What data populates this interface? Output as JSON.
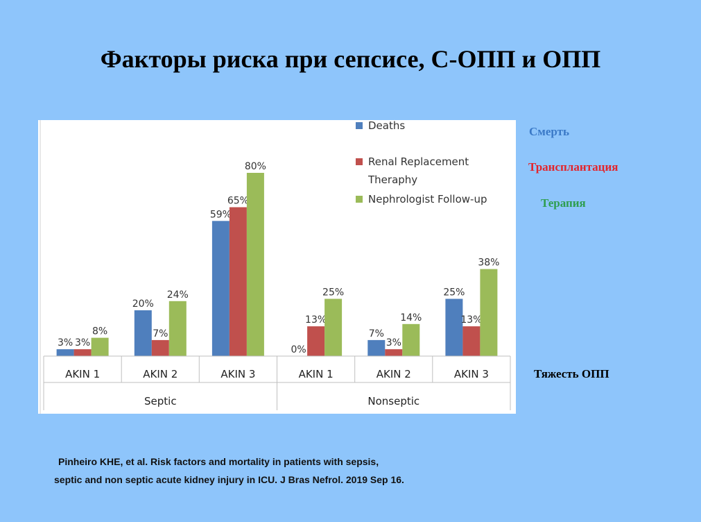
{
  "slide": {
    "title": "Факторы риска при сепсисе, С-ОПП и ОПП",
    "translations": {
      "deaths": "Смерть",
      "rrt": "Трансплантация",
      "followup": "Терапия"
    },
    "severity_label": "Тяжесть ОПП",
    "citation": {
      "line1": "Pinheiro KHE, et al. Risk factors and mortality in patients with sepsis,",
      "line2": "septic and non septic acute kidney injury in ICU. J Bras Nefrol. 2019 Sep 16."
    },
    "colors": {
      "background": "#8ec5fb",
      "deaths": "#3a79c7",
      "rrt": "#e3242b",
      "followup": "#2e9e4f"
    }
  },
  "chart_data": {
    "type": "bar",
    "categories": [
      "AKIN 1",
      "AKIN 2",
      "AKIN 3",
      "AKIN 1",
      "AKIN 2",
      "AKIN 3"
    ],
    "groups": [
      {
        "label": "Septic",
        "categories": [
          0,
          1,
          2
        ]
      },
      {
        "label": "Nonseptic",
        "categories": [
          3,
          4,
          5
        ]
      }
    ],
    "series": [
      {
        "name": "Deaths",
        "color": "#4f7fbd",
        "values": [
          3,
          20,
          59,
          0,
          7,
          25
        ],
        "labels": [
          "3%",
          "20%",
          "59%",
          "0%",
          "7%",
          "25%"
        ]
      },
      {
        "name": "Renal Replacement Theraphy",
        "color": "#c0504d",
        "values": [
          3,
          7,
          65,
          13,
          3,
          13
        ],
        "labels": [
          "3%",
          "7%",
          "65%",
          "13%",
          "3%",
          "13%"
        ]
      },
      {
        "name": "Nephrologist Follow-up",
        "color": "#9bbb59",
        "values": [
          8,
          24,
          80,
          25,
          14,
          38
        ],
        "labels": [
          "8%",
          "24%",
          "80%",
          "25%",
          "14%",
          "38%"
        ]
      }
    ],
    "legend_lines": [
      [
        "Deaths"
      ],
      [
        "Renal Replacement",
        "Theraphy"
      ],
      [
        "Nephrologist Follow-up"
      ]
    ],
    "ylim": [
      0,
      100
    ],
    "legend_position": "top-right"
  }
}
